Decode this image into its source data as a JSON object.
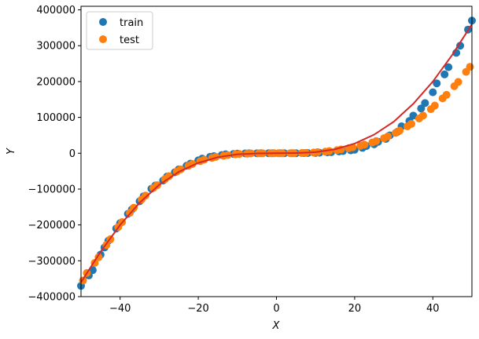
{
  "chart_data": {
    "type": "scatter",
    "title": "",
    "xlabel": "X",
    "ylabel": "Y",
    "xlim": [
      -50,
      50
    ],
    "ylim": [
      -400000,
      410000
    ],
    "x_ticks": [
      -40,
      -20,
      0,
      20,
      40
    ],
    "x_tick_labels": [
      "−40",
      "−20",
      "0",
      "20",
      "40"
    ],
    "y_ticks": [
      -400000,
      -300000,
      -200000,
      -100000,
      0,
      100000,
      200000,
      300000,
      400000
    ],
    "y_tick_labels": [
      "−400000",
      "−300000",
      "−200000",
      "−100000",
      "0",
      "100000",
      "200000",
      "300000",
      "400000"
    ],
    "grid": false,
    "legend_position": "upper-left",
    "series": [
      {
        "name": "train",
        "color": "#1f77b4",
        "x": [
          -50,
          -48,
          -47,
          -45,
          -44,
          -43,
          -41,
          -40,
          -38,
          -37,
          -35,
          -34,
          -32,
          -31,
          -29,
          -28,
          -26,
          -25,
          -23,
          -22,
          -20,
          -19,
          -17,
          -16,
          -14,
          -13,
          -11,
          -10,
          -8,
          -7,
          -5,
          -4,
          -2,
          -1,
          1,
          2,
          4,
          5,
          7,
          8,
          10,
          11,
          13,
          14,
          16,
          17,
          19,
          20,
          22,
          23,
          25,
          26,
          28,
          29,
          31,
          32,
          34,
          35,
          37,
          38,
          40,
          41,
          43,
          44,
          46,
          47,
          49,
          50
        ],
        "y": [
          -370000,
          -341000,
          -326000,
          -283000,
          -263000,
          -244000,
          -210000,
          -195000,
          -169000,
          -157000,
          -134000,
          -120000,
          -99000,
          -90000,
          -76000,
          -65000,
          -53000,
          -45000,
          -35000,
          -29000,
          -20000,
          -15000,
          -10000,
          -8000,
          -5000,
          -3000,
          -2000,
          -1000,
          -500,
          -300,
          -100,
          0,
          0,
          0,
          0,
          0,
          100,
          100,
          300,
          500,
          1000,
          1500,
          2500,
          3000,
          5000,
          6000,
          8000,
          10000,
          15000,
          20000,
          25000,
          32000,
          40000,
          50000,
          60000,
          75000,
          90000,
          105000,
          125000,
          140000,
          170000,
          195000,
          220000,
          240000,
          280000,
          300000,
          345000,
          370000
        ]
      },
      {
        "name": "test",
        "color": "#ff7f0e",
        "x": [
          -49.5,
          -48.5,
          -46.5,
          -45.5,
          -43.5,
          -42.5,
          -40.5,
          -39.5,
          -37.5,
          -36.5,
          -34.5,
          -33.5,
          -31.5,
          -30.5,
          -28.5,
          -27.5,
          -25.5,
          -24.5,
          -22.5,
          -21.5,
          -19.5,
          -18.5,
          -16.5,
          -15.5,
          -13.5,
          -12.5,
          -10.5,
          -9.5,
          -7.5,
          -6.5,
          -4.5,
          -3.5,
          -1.5,
          -0.5,
          0.5,
          1.5,
          3.5,
          4.5,
          6.5,
          7.5,
          9.5,
          10.5,
          12.5,
          13.5,
          15.5,
          16.5,
          18.5,
          19.5,
          21.5,
          22.5,
          24.5,
          25.5,
          27.5,
          28.5,
          30.5,
          31.5,
          33.5,
          34.5,
          36.5,
          37.5,
          39.5,
          40.5,
          42.5,
          43.5,
          45.5,
          46.5,
          48.5,
          49.5
        ],
        "y": [
          -355000,
          -334000,
          -306000,
          -290000,
          -256000,
          -240000,
          -206000,
          -192000,
          -166000,
          -152000,
          -129000,
          -118000,
          -97000,
          -89000,
          -72000,
          -64000,
          -51000,
          -45000,
          -35000,
          -30000,
          -22000,
          -18000,
          -13000,
          -10000,
          -7000,
          -5000,
          -3000,
          -2000,
          -1000,
          -500,
          -200,
          -100,
          0,
          0,
          0,
          0,
          100,
          200,
          500,
          1000,
          2000,
          3000,
          4500,
          6000,
          8500,
          10500,
          14000,
          16500,
          21000,
          24000,
          30000,
          34000,
          42000,
          47000,
          57000,
          63000,
          75000,
          82000,
          97000,
          105000,
          123000,
          133000,
          153000,
          163000,
          187000,
          199000,
          227000,
          241000
        ]
      },
      {
        "name": "",
        "color": "#d62728",
        "kind": "line",
        "x": [
          -50,
          -45,
          -40,
          -35,
          -30,
          -25,
          -20,
          -15,
          -10,
          -5,
          0,
          5,
          10,
          15,
          20,
          25,
          30,
          35,
          40,
          45,
          50
        ],
        "y": [
          -360000,
          -275000,
          -200000,
          -138000,
          -88000,
          -52000,
          -27000,
          -11000,
          -3000,
          -500,
          0,
          500,
          3000,
          11000,
          27000,
          52000,
          88000,
          138000,
          200000,
          275000,
          360000
        ]
      }
    ]
  }
}
